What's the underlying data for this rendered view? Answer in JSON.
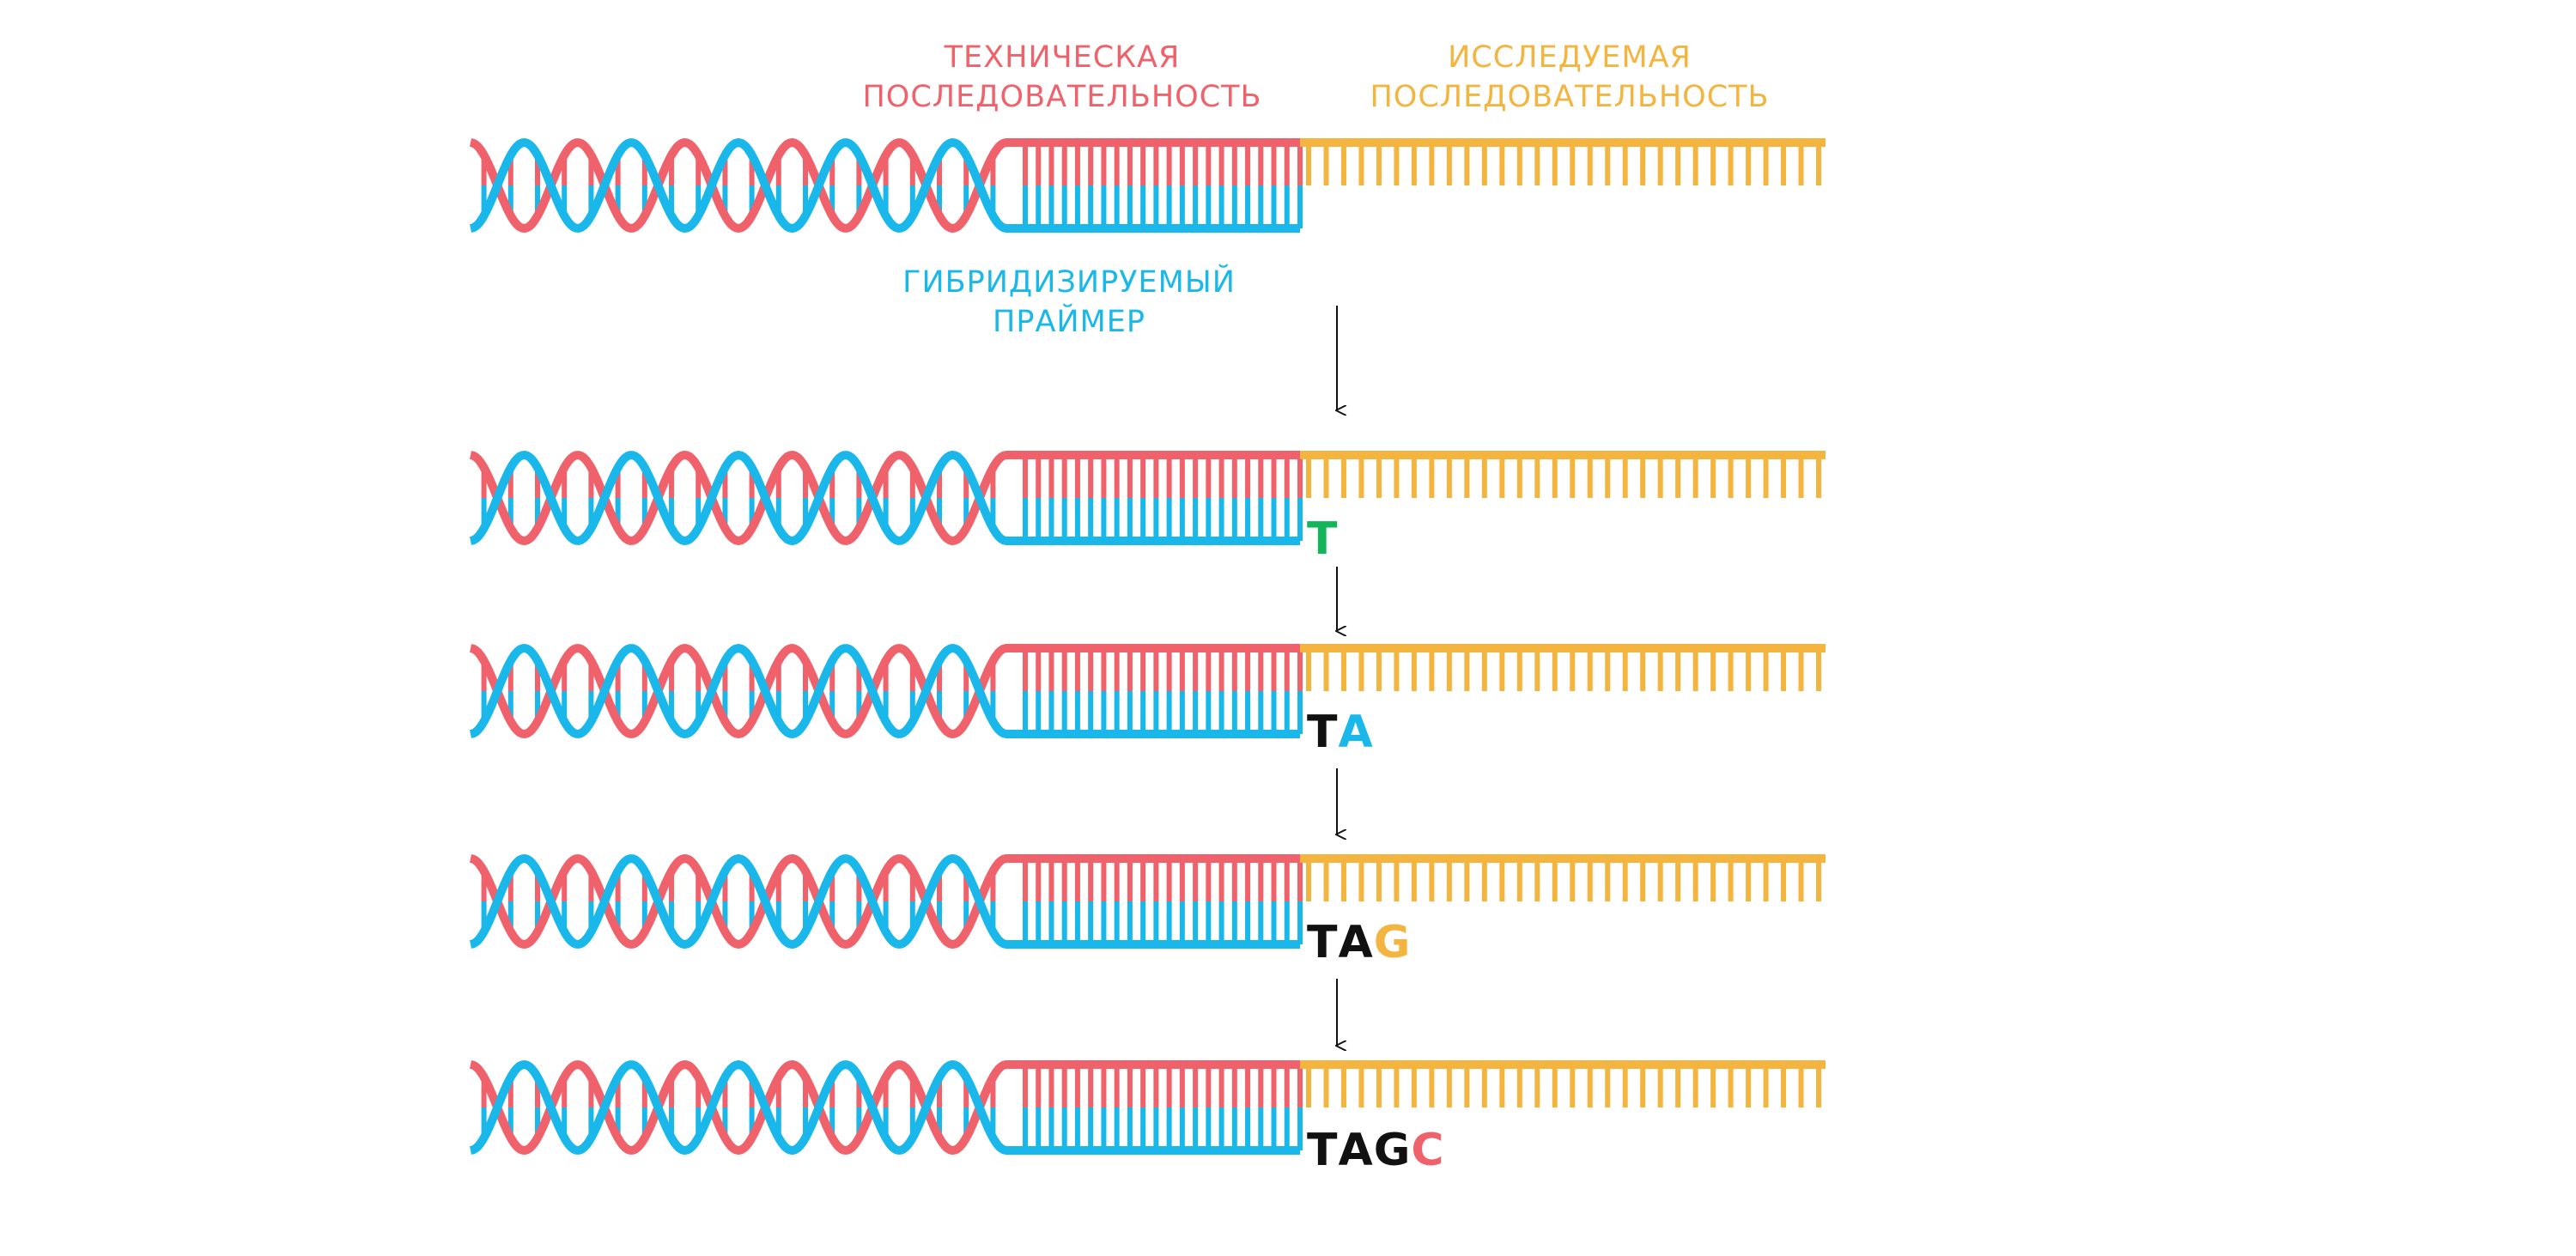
{
  "colors": {
    "red": "#f0626b",
    "blue": "#1ab8ea",
    "yellow": "#f3b53f",
    "green": "#14b45a",
    "black": "#111111"
  },
  "labels": {
    "technical": {
      "line1": "ТЕХНИЧЕСКАЯ",
      "line2": "ПОСЛЕДОВАТЕЛЬНОСТЬ",
      "color": "#f0626b"
    },
    "studied": {
      "line1": "ИССЛЕДУЕМАЯ",
      "line2": "ПОСЛЕДОВАТЕЛЬНОСТЬ",
      "color": "#f3b53f"
    },
    "primer": {
      "line1": "ГИБРИДИЗИРУЕМЫЙ",
      "line2": "ПРАЙМЕР",
      "color": "#1ab8ea"
    }
  },
  "steps": [
    {
      "sequence": []
    },
    {
      "sequence": [
        {
          "base": "T",
          "color": "#14b45a"
        }
      ]
    },
    {
      "sequence": [
        {
          "base": "T",
          "color": "#111111"
        },
        {
          "base": "A",
          "color": "#1ab8ea"
        }
      ]
    },
    {
      "sequence": [
        {
          "base": "T",
          "color": "#111111"
        },
        {
          "base": "A",
          "color": "#111111"
        },
        {
          "base": "G",
          "color": "#f3b53f"
        }
      ]
    },
    {
      "sequence": [
        {
          "base": "T",
          "color": "#111111"
        },
        {
          "base": "A",
          "color": "#111111"
        },
        {
          "base": "G",
          "color": "#111111"
        },
        {
          "base": "C",
          "color": "#f0626b"
        }
      ]
    }
  ]
}
